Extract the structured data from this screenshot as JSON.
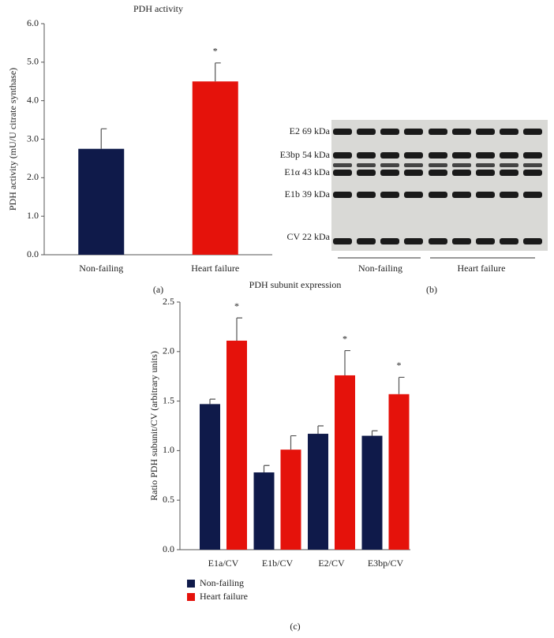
{
  "chart_data": [
    {
      "type": "bar",
      "title": "PDH activity",
      "ylabel": "PDH activity (mU/U citrate synthase)",
      "panel": "(a)",
      "categories": [
        "Non-failing",
        "Heart failure"
      ],
      "values": [
        2.75,
        4.5
      ],
      "errors": [
        0.52,
        0.48
      ],
      "colors": [
        "#0f1a4a",
        "#e5120b"
      ],
      "annotations": [
        null,
        "*"
      ],
      "ylim": [
        0,
        6
      ],
      "yticks": [
        {
          "value": 0,
          "label": "0.0"
        },
        {
          "value": 1,
          "label": "1.0"
        },
        {
          "value": 2,
          "label": "2.0"
        },
        {
          "value": 3,
          "label": "3.0"
        },
        {
          "value": 4,
          "label": "4.0"
        },
        {
          "value": 5,
          "label": "5.0"
        },
        {
          "value": 6,
          "label": "6.0"
        }
      ]
    },
    {
      "type": "grouped-bar",
      "title": "PDH subunit expression",
      "ylabel": "Ratio PDH subunit/CV (arbitrary units)",
      "panel": "(c)",
      "categories": [
        "E1a/CV",
        "E1b/CV",
        "E2/CV",
        "E3bp/CV"
      ],
      "series": [
        {
          "name": "Non-failing",
          "color": "#0f1a4a",
          "values": [
            1.47,
            0.78,
            1.17,
            1.15
          ],
          "errors": [
            0.05,
            0.07,
            0.08,
            0.05
          ]
        },
        {
          "name": "Heart failure",
          "color": "#e5120b",
          "values": [
            2.11,
            1.01,
            1.76,
            1.57
          ],
          "errors": [
            0.23,
            0.14,
            0.25,
            0.17
          ],
          "annotations": [
            "*",
            null,
            "*",
            "*"
          ]
        }
      ],
      "ylim": [
        0,
        2.5
      ],
      "yticks": [
        {
          "value": 0,
          "label": "0.0"
        },
        {
          "value": 0.5,
          "label": "0.5"
        },
        {
          "value": 1,
          "label": "1.0"
        },
        {
          "value": 1.5,
          "label": "1.5"
        },
        {
          "value": 2,
          "label": "2.0"
        },
        {
          "value": 2.5,
          "label": "2.5"
        }
      ]
    }
  ],
  "blot": {
    "panel": "(b)",
    "bands": [
      "E2 69 kDa",
      "E3bp 54 kDa",
      "E1α 43 kDa",
      "E1b 39 kDa",
      "CV 22 kDa"
    ],
    "groups": [
      "Non-failing",
      "Heart failure"
    ]
  }
}
